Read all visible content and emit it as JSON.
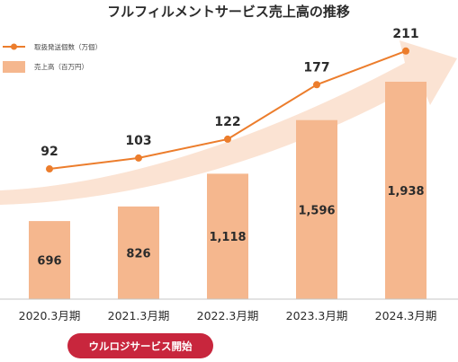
{
  "colors": {
    "bar": "#f5b78e",
    "line": "#ec7d2c",
    "marker": "#ec7d2c",
    "arrow": "#fbe3d3",
    "axis": "#c4c4c4",
    "badge": "#c8263d"
  },
  "chart_data": {
    "type": "bar",
    "title": "フルフィルメントサービス売上高の推移",
    "categories": [
      "2020.3月期",
      "2021.3月期",
      "2022.3月期",
      "2023.3月期",
      "2024.3月期"
    ],
    "series": [
      {
        "name": "売上高（百万円）",
        "type": "bar",
        "values": [
          696,
          826,
          1118,
          1596,
          1938
        ],
        "labels": [
          "696",
          "826",
          "1,118",
          "1,596",
          "1,938"
        ]
      },
      {
        "name": "取扱発送個数（万個）",
        "type": "line",
        "values": [
          92,
          103,
          122,
          177,
          211
        ],
        "labels": [
          "92",
          "103",
          "122",
          "177",
          "211"
        ]
      }
    ],
    "legend": {
      "position": "top-left",
      "line_label": "取扱発送個数（万個）",
      "bar_label": "売上高（百万円）"
    },
    "annotation": {
      "text": "ウルロジサービス開始",
      "category": "2021.3月期"
    },
    "grid": false
  }
}
